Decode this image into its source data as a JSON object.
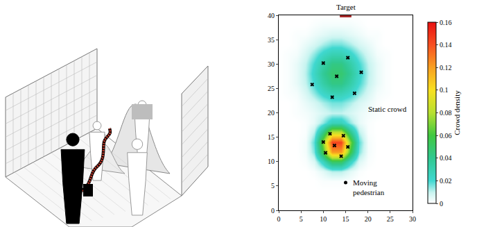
{
  "chart_data": {
    "type": "heatmap",
    "x": [
      0,
      2,
      4,
      6,
      8,
      10,
      12,
      14,
      16,
      18,
      20,
      22,
      24,
      26,
      28,
      30
    ],
    "y": [
      0,
      2,
      4,
      6,
      8,
      10,
      12,
      14,
      16,
      18,
      20,
      22,
      24,
      26,
      28,
      30,
      32,
      34,
      36,
      38,
      40
    ],
    "z": [
      [
        0,
        0,
        0,
        0,
        0,
        0,
        0,
        0,
        0,
        0,
        0,
        0,
        0,
        0,
        0,
        0
      ],
      [
        0,
        0,
        0,
        0,
        0,
        0,
        0,
        0,
        0,
        0,
        0,
        0,
        0,
        0,
        0,
        0
      ],
      [
        0,
        0,
        0,
        0,
        0,
        0,
        0,
        0,
        0,
        0,
        0,
        0,
        0,
        0,
        0,
        0
      ],
      [
        0,
        0,
        0,
        0,
        0,
        0.001,
        0.001,
        0.001,
        0.001,
        0,
        0,
        0,
        0,
        0,
        0,
        0
      ],
      [
        0,
        0,
        0,
        0,
        0.001,
        0.005,
        0.011,
        0.011,
        0.005,
        0.001,
        0,
        0,
        0,
        0,
        0,
        0
      ],
      [
        0,
        0,
        0,
        0.001,
        0.006,
        0.025,
        0.051,
        0.051,
        0.025,
        0.006,
        0.001,
        0,
        0,
        0,
        0,
        0
      ],
      [
        0,
        0,
        0,
        0.002,
        0.015,
        0.06,
        0.121,
        0.121,
        0.06,
        0.015,
        0.002,
        0,
        0,
        0,
        0,
        0
      ],
      [
        0,
        0,
        0,
        0.002,
        0.018,
        0.072,
        0.144,
        0.144,
        0.072,
        0.018,
        0.002,
        0,
        0,
        0,
        0,
        0
      ],
      [
        0,
        0,
        0,
        0.001,
        0.011,
        0.043,
        0.085,
        0.085,
        0.043,
        0.011,
        0.001,
        0,
        0,
        0,
        0,
        0
      ],
      [
        0,
        0,
        0,
        0.001,
        0.004,
        0.014,
        0.027,
        0.027,
        0.014,
        0.004,
        0.001,
        0,
        0,
        0,
        0,
        0
      ],
      [
        0,
        0,
        0.001,
        0.002,
        0.004,
        0.007,
        0.01,
        0.01,
        0.007,
        0.004,
        0.002,
        0.001,
        0,
        0,
        0,
        0
      ],
      [
        0,
        0,
        0.001,
        0.004,
        0.007,
        0.012,
        0.016,
        0.016,
        0.012,
        0.007,
        0.004,
        0.001,
        0,
        0,
        0,
        0
      ],
      [
        0,
        0.001,
        0.002,
        0.007,
        0.014,
        0.023,
        0.029,
        0.029,
        0.023,
        0.014,
        0.007,
        0.002,
        0.001,
        0,
        0,
        0
      ],
      [
        0,
        0.001,
        0.004,
        0.01,
        0.02,
        0.033,
        0.043,
        0.043,
        0.033,
        0.02,
        0.01,
        0.004,
        0.001,
        0,
        0,
        0
      ],
      [
        0,
        0.001,
        0.004,
        0.011,
        0.023,
        0.038,
        0.048,
        0.048,
        0.038,
        0.023,
        0.011,
        0.004,
        0.001,
        0,
        0,
        0
      ],
      [
        0,
        0.001,
        0.004,
        0.01,
        0.02,
        0.033,
        0.043,
        0.043,
        0.033,
        0.02,
        0.01,
        0.004,
        0.001,
        0,
        0,
        0
      ],
      [
        0,
        0.001,
        0.002,
        0.007,
        0.014,
        0.023,
        0.029,
        0.029,
        0.023,
        0.014,
        0.007,
        0.002,
        0.001,
        0,
        0,
        0
      ],
      [
        0,
        0,
        0.001,
        0.004,
        0.007,
        0.012,
        0.016,
        0.016,
        0.012,
        0.007,
        0.004,
        0.001,
        0,
        0,
        0,
        0
      ],
      [
        0,
        0,
        0.001,
        0.001,
        0.003,
        0.005,
        0.007,
        0.007,
        0.005,
        0.003,
        0.001,
        0.001,
        0,
        0,
        0,
        0
      ],
      [
        0,
        0,
        0,
        0,
        0.001,
        0.002,
        0.002,
        0.002,
        0.002,
        0.001,
        0,
        0,
        0,
        0,
        0,
        0
      ],
      [
        0,
        0,
        0,
        0,
        0,
        0,
        0,
        0,
        0,
        0,
        0,
        0,
        0,
        0,
        0,
        0
      ]
    ],
    "zlim": [
      0,
      0.16
    ],
    "zticks": [
      0,
      0.02,
      0.04,
      0.06,
      0.08,
      0.1,
      0.12,
      0.14,
      0.16
    ],
    "colorbar_title": "Crowd density",
    "xlim": [
      0,
      30
    ],
    "xticks": [
      0,
      5,
      10,
      15,
      20,
      25,
      30
    ],
    "ylim": [
      0,
      40
    ],
    "yticks": [
      0,
      5,
      10,
      15,
      20,
      25,
      30,
      35,
      40
    ],
    "grid": false,
    "static_crowd": {
      "label": "Static crowd",
      "marker": "x",
      "color": "#000000",
      "x": [
        10,
        15.5,
        13,
        7.5,
        18.5,
        17,
        12,
        11.5,
        14.5,
        10,
        12.5,
        15.5,
        10.5,
        14
      ],
      "y": [
        30.2,
        31.3,
        27.5,
        25.8,
        28.3,
        24,
        23.2,
        15.7,
        15.3,
        14,
        13.3,
        13,
        11.8,
        11.1
      ]
    },
    "pedestrian": {
      "label": "Moving pedestrian",
      "marker": "circle",
      "color": "#000000",
      "x": 15,
      "y": 5.7
    },
    "target": {
      "label": "Target",
      "color": "#a52a2a",
      "x": [
        13.7,
        16.3
      ],
      "y": 40
    }
  }
}
